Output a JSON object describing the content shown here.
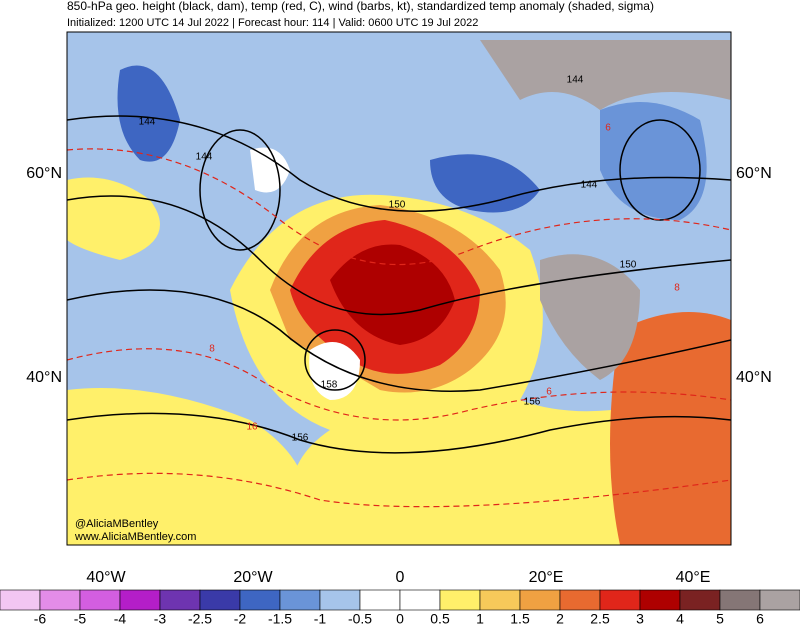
{
  "header": {
    "title": "850-hPa geo. height (black, dam), temp (red, C), wind (barbs, kt), standardized temp anomaly (shaded, sigma)",
    "subtitle": "Initialized: 1200 UTC 14 Jul 2022 | Forecast hour: 114 | Valid: 0600 UTC 19 Jul 2022"
  },
  "map": {
    "lat_labels": [
      "60°N",
      "40°N"
    ],
    "lon_labels": [
      "40°W",
      "20°W",
      "0",
      "20°E",
      "40°E"
    ],
    "contour_labels": [
      144,
      144,
      144,
      144,
      150,
      150,
      156,
      158,
      156,
      6,
      8,
      8,
      16,
      6
    ],
    "credits": [
      "@AliciaMBentley",
      "www.AliciaMBentley.com"
    ]
  },
  "colorbar": {
    "labels": [
      -6,
      -5,
      -4,
      -3,
      -2.5,
      -2,
      -1.5,
      -1,
      -0.5,
      0,
      0.5,
      1,
      1.5,
      2,
      2.5,
      3,
      4,
      5,
      6
    ],
    "colors": [
      "#f2c6f2",
      "#e38ce8",
      "#d35ee0",
      "#b41ec8",
      "#6e34b0",
      "#3a3aa8",
      "#3e66c2",
      "#6a94d8",
      "#a6c4ea",
      "#ffffff",
      "#ffffff",
      "#fff06a",
      "#f7c95a",
      "#f0a142",
      "#e86a30",
      "#e0261a",
      "#ae0000",
      "#7a2222",
      "#857676",
      "#aaa2a2"
    ]
  }
}
